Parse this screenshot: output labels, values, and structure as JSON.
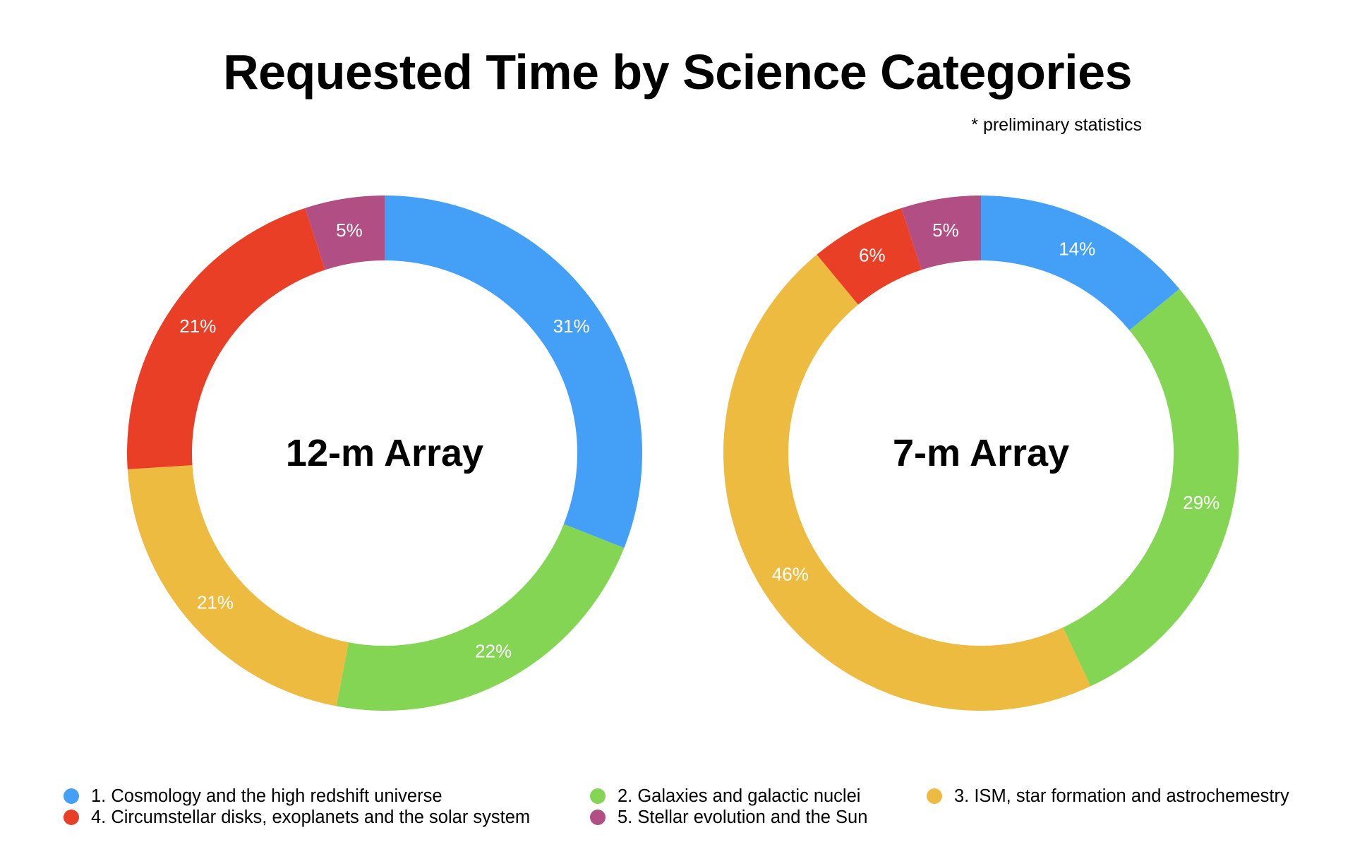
{
  "title": "Requested Time by Science Categories",
  "note": "* preliminary statistics",
  "categories": [
    {
      "label": "1. Cosmology and the high redshift universe",
      "color": "#44a0f7"
    },
    {
      "label": "2. Galaxies and galactic nuclei",
      "color": "#83d553"
    },
    {
      "label": "3. ISM, star formation and astrochemestry",
      "color": "#eebb41"
    },
    {
      "label": "4. Circumstellar disks, exoplanets and the solar system",
      "color": "#ea3f27"
    },
    {
      "label": "5. Stellar evolution and the Sun",
      "color": "#b14f84"
    }
  ],
  "chart_data": [
    {
      "type": "pie",
      "style": "donut",
      "title": "12-m Array",
      "labels": [
        "1. Cosmology and the high redshift universe",
        "2. Galaxies and galactic nuclei",
        "3. ISM, star formation and astrochemestry",
        "4. Circumstellar disks, exoplanets and the solar system",
        "5. Stellar evolution and the Sun"
      ],
      "values": [
        31,
        22,
        21,
        21,
        5
      ],
      "value_labels": [
        "31%",
        "22%",
        "21%",
        "21%",
        "5%"
      ],
      "colors": [
        "#44a0f7",
        "#83d553",
        "#eebb41",
        "#ea3f27",
        "#b14f84"
      ],
      "legend": "bottom",
      "start": "top",
      "direction": "clockwise"
    },
    {
      "type": "pie",
      "style": "donut",
      "title": "7-m Array",
      "labels": [
        "1. Cosmology and the high redshift universe",
        "2. Galaxies and galactic nuclei",
        "3. ISM, star formation and astrochemestry",
        "4. Circumstellar disks, exoplanets and the solar system",
        "5. Stellar evolution and the Sun"
      ],
      "values": [
        14,
        29,
        46,
        6,
        5
      ],
      "value_labels": [
        "14%",
        "29%",
        "46%",
        "6%",
        "5%"
      ],
      "colors": [
        "#44a0f7",
        "#83d553",
        "#eebb41",
        "#ea3f27",
        "#b14f84"
      ],
      "legend": "bottom",
      "start": "top",
      "direction": "clockwise"
    }
  ]
}
